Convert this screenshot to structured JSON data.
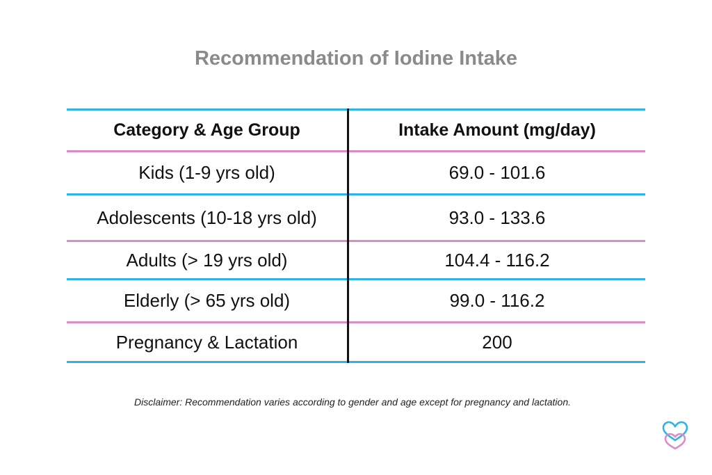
{
  "title": "Recommendation of Iodine Intake",
  "table": {
    "headers": [
      "Category & Age Group",
      "Intake Amount (mg/day)"
    ],
    "rows": [
      {
        "category": "Kids (1-9 yrs old)",
        "intake": "69.0 - 101.6"
      },
      {
        "category": "Adolescents (10-18 yrs old)",
        "intake": "93.0 - 133.6"
      },
      {
        "category": "Adults (> 19 yrs old)",
        "intake": "104.4 - 116.2"
      },
      {
        "category": "Elderly (> 65 yrs old)",
        "intake": "99.0 - 116.2"
      },
      {
        "category": "Pregnancy & Lactation",
        "intake": "200"
      }
    ]
  },
  "disclaimer": "Disclaimer: Recommendation varies according to gender and age except for pregnancy and lactation.",
  "colors": {
    "title_gray": "#8a8a8a",
    "line_blue": "#2fb2e6",
    "line_pink": "#d98cc6",
    "divider_black": "#111111"
  },
  "logo": {
    "icon": "overlapping-hearts-icon"
  }
}
